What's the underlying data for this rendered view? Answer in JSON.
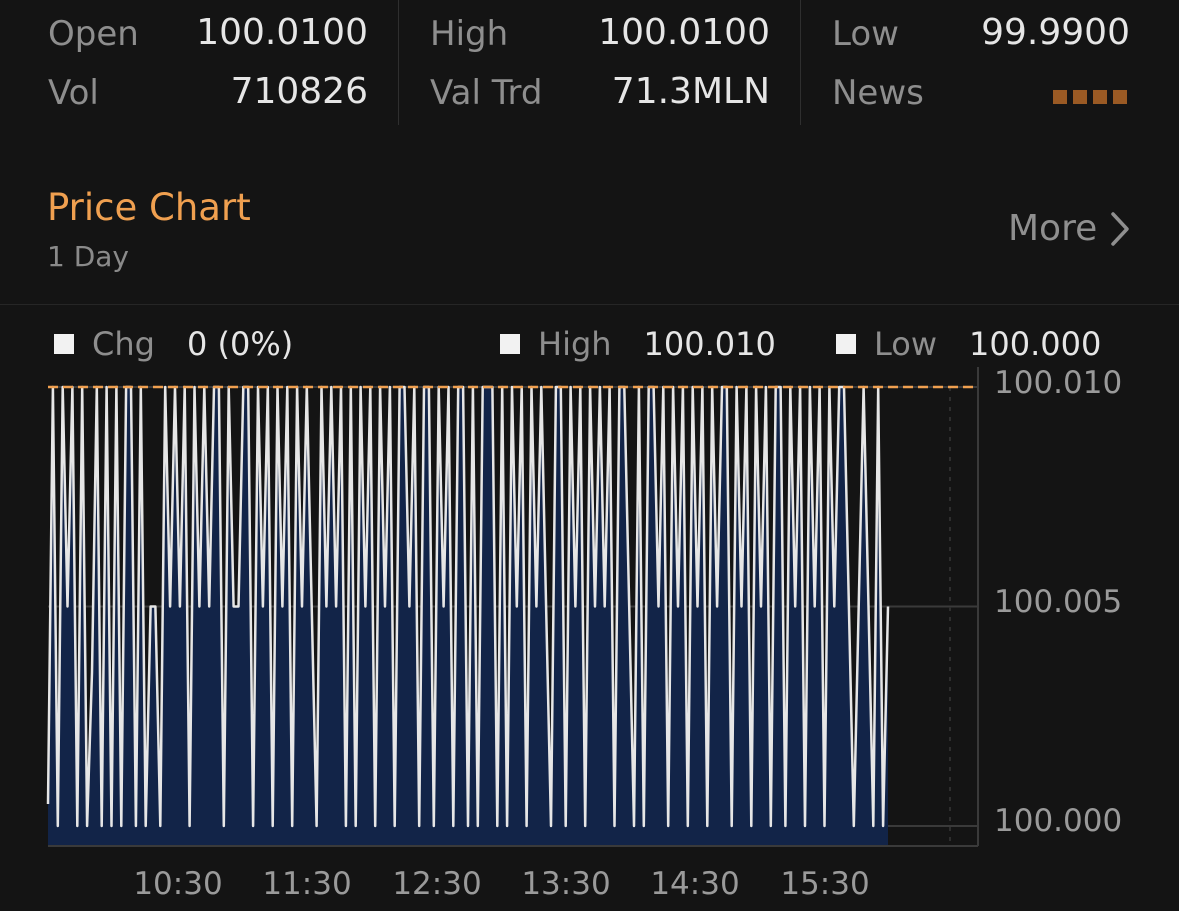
{
  "stats": {
    "open_label": "Open",
    "open_value": "100.0100",
    "vol_label": "Vol",
    "vol_value": "710826",
    "high_label": "High",
    "high_value": "100.0100",
    "valtrd_label": "Val Trd",
    "valtrd_value": "71.3MLN",
    "low_label": "Low",
    "low_value": "99.9900",
    "news_label": "News"
  },
  "price_chart": {
    "title": "Price Chart",
    "period": "1 Day",
    "more_label": "More"
  },
  "legend": {
    "chg_label": "Chg",
    "chg_value": "0 (0%)",
    "high_label": "High",
    "high_value": "100.010",
    "low_label": "Low",
    "low_value": "100.000"
  },
  "colors": {
    "accent": "#f0a050",
    "fill": "#122448",
    "line": "#e6e6e6",
    "ref_line": "#f0a050",
    "news": "#9a5a24"
  },
  "chart_data": {
    "type": "area",
    "ylim": [
      100.0,
      100.01
    ],
    "yticks": [
      "100.010",
      "100.005",
      "100.000"
    ],
    "ytick_values": [
      100.01,
      100.005,
      100.0
    ],
    "xticks": [
      "10:30",
      "11:30",
      "12:30",
      "13:30",
      "14:30",
      "15:30"
    ],
    "x_range": [
      "10:00",
      "17:10"
    ],
    "x_ticks_time": [
      "10:30",
      "11:30",
      "12:30",
      "13:30",
      "14:30",
      "15:30"
    ],
    "last_time": "16:29",
    "high_line": 100.01,
    "series": [
      {
        "values": [
          100.0005,
          100.01,
          100.0,
          100.01,
          100.005,
          100.01,
          100.0,
          100.01,
          100.0,
          100.0035,
          100.01,
          100.0,
          100.01,
          100.0,
          100.01,
          100.0,
          100.01,
          100.01,
          100.0,
          100.01,
          100.0,
          100.005,
          100.005,
          100.0,
          100.01,
          100.005,
          100.01,
          100.005,
          100.01,
          100.0,
          100.01,
          100.005,
          100.01,
          100.005,
          100.01,
          100.01,
          100.0,
          100.01,
          100.005,
          100.005,
          100.01,
          100.01,
          100.0,
          100.01,
          100.005,
          100.01,
          100.0,
          100.01,
          100.005,
          100.01,
          100.0,
          100.01,
          100.005,
          100.01,
          100.005,
          100.0,
          100.01,
          100.005,
          100.01,
          100.005,
          100.01,
          100.0,
          100.01,
          100.0,
          100.01,
          100.005,
          100.01,
          100.0,
          100.01,
          100.005,
          100.01,
          100.0,
          100.01,
          100.01,
          100.005,
          100.01,
          100.0,
          100.01,
          100.01,
          100.0,
          100.01,
          100.005,
          100.01,
          100.0,
          100.01,
          100.01,
          100.0,
          100.01,
          100.0,
          100.01,
          100.01,
          100.01,
          100.0,
          100.01,
          100.0,
          100.01,
          100.005,
          100.01,
          100.0,
          100.01,
          100.005,
          100.01,
          100.005,
          100.0,
          100.01,
          100.01,
          100.0,
          100.01,
          100.005,
          100.01,
          100.0,
          100.01,
          100.005,
          100.01,
          100.005,
          100.01,
          100.0,
          100.01,
          100.01,
          100.005,
          100.0,
          100.01,
          100.0,
          100.01,
          100.01,
          100.005,
          100.01,
          100.0,
          100.01,
          100.005,
          100.01,
          100.0,
          100.01,
          100.005,
          100.01,
          100.0,
          100.01,
          100.005,
          100.01,
          100.01,
          100.0,
          100.01,
          100.005,
          100.01,
          100.0,
          100.01,
          100.005,
          100.01,
          100.0,
          100.01,
          100.01,
          100.0,
          100.01,
          100.005,
          100.01,
          100.0,
          100.01,
          100.005,
          100.01,
          100.0,
          100.01,
          100.005,
          100.01,
          100.01,
          100.005,
          100.0,
          100.005,
          100.01,
          100.005,
          100.0,
          100.01,
          100.0,
          100.005
        ]
      }
    ]
  }
}
